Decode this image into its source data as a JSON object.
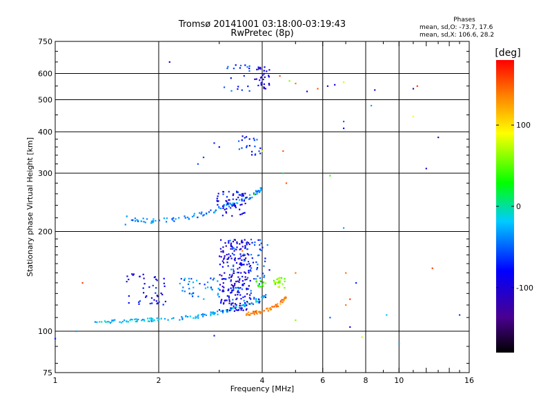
{
  "chart_data": {
    "type": "scatter",
    "title": "Tromsø 20141001 03:18:00-03:19:43",
    "subtitle": "RwPretec (8p)",
    "xlabel": "Frequency [MHz]",
    "ylabel": "Stationary phase Virtual Height [km]",
    "x_scale": "log",
    "y_scale": "log",
    "xlim": [
      1,
      16
    ],
    "ylim": [
      75,
      750
    ],
    "x_ticks": [
      "1",
      "2",
      "4",
      "6",
      "8",
      "10",
      "16"
    ],
    "x_tick_values": [
      1,
      2,
      4,
      6,
      8,
      10,
      16
    ],
    "y_ticks": [
      "75",
      "100",
      "200",
      "300",
      "400",
      "500",
      "600",
      "750"
    ],
    "y_tick_values": [
      75,
      100,
      200,
      300,
      400,
      500,
      600,
      750
    ],
    "x_gridlines": [
      2,
      4,
      6,
      8,
      10
    ],
    "y_gridlines": [
      100,
      200,
      300,
      400,
      500,
      600
    ],
    "grid": true,
    "phases_header": "Phases",
    "phases_o": "mean, sd,O: -73.7, 17.6",
    "phases_x": "mean, sd,X: 106.6, 28.2",
    "colorbar": {
      "label": "[deg]",
      "ticks": [
        "100",
        "0",
        "-100"
      ],
      "tick_values": [
        100,
        0,
        -100
      ],
      "range": [
        -180,
        180
      ]
    },
    "traces": [
      {
        "kind": "curve",
        "pts": [
          [
            1.3,
            107
          ],
          [
            1.5,
            107
          ],
          [
            1.8,
            108
          ],
          [
            2.2,
            109
          ],
          [
            2.6,
            111
          ],
          [
            3.0,
            114
          ],
          [
            3.4,
            118
          ],
          [
            3.8,
            123
          ],
          [
            4.1,
            128
          ]
        ],
        "phase": -25,
        "n": 150,
        "spread": 0.012
      },
      {
        "kind": "curve",
        "pts": [
          [
            3.6,
            113
          ],
          [
            3.9,
            114
          ],
          [
            4.2,
            117
          ],
          [
            4.5,
            121
          ],
          [
            4.7,
            127
          ]
        ],
        "phase": 140,
        "n": 70,
        "spread": 0.012
      },
      {
        "kind": "curve",
        "pts": [
          [
            1.6,
            220
          ],
          [
            1.9,
            215
          ],
          [
            2.3,
            218
          ],
          [
            2.8,
            228
          ],
          [
            3.3,
            243
          ],
          [
            3.7,
            255
          ],
          [
            4.0,
            270
          ]
        ],
        "phase": -40,
        "n": 110,
        "spread": 0.015
      },
      {
        "kind": "cloud",
        "f": [
          3.0,
          3.7
        ],
        "h": [
          115,
          190
        ],
        "phase": -95,
        "n": 200
      },
      {
        "kind": "cloud",
        "f": [
          3.2,
          4.2
        ],
        "h": [
          120,
          190
        ],
        "phase": -60,
        "n": 90
      },
      {
        "kind": "cloud",
        "f": [
          1.6,
          2.1
        ],
        "h": [
          120,
          150
        ],
        "phase": -85,
        "n": 45
      },
      {
        "kind": "cloud",
        "f": [
          2.3,
          3.0
        ],
        "h": [
          125,
          145
        ],
        "phase": -45,
        "n": 40
      },
      {
        "kind": "cloud",
        "f": [
          2.9,
          3.6
        ],
        "h": [
          220,
          265
        ],
        "phase": -85,
        "n": 60
      },
      {
        "kind": "cloud",
        "f": [
          3.4,
          4.0
        ],
        "h": [
          340,
          390
        ],
        "phase": -70,
        "n": 22
      },
      {
        "kind": "cloud",
        "f": [
          3.1,
          3.7
        ],
        "h": [
          520,
          640
        ],
        "phase": -60,
        "n": 20
      },
      {
        "kind": "cloud",
        "f": [
          3.8,
          4.2
        ],
        "h": [
          540,
          630
        ],
        "phase": -90,
        "n": 34
      },
      {
        "kind": "cloud",
        "f": [
          4.3,
          4.7
        ],
        "h": [
          135,
          145
        ],
        "phase": 55,
        "n": 20
      },
      {
        "kind": "cloud",
        "f": [
          3.8,
          4.1
        ],
        "h": [
          136,
          144
        ],
        "phase": 45,
        "n": 14
      }
    ],
    "points": [
      [
        2.15,
        650,
        -90
      ],
      [
        4.5,
        590,
        150
      ],
      [
        4.8,
        570,
        60
      ],
      [
        5.0,
        560,
        140
      ],
      [
        5.4,
        530,
        -100
      ],
      [
        5.8,
        540,
        150
      ],
      [
        6.2,
        550,
        -110
      ],
      [
        6.5,
        555,
        -90
      ],
      [
        6.9,
        565,
        80
      ],
      [
        8.5,
        535,
        -110
      ],
      [
        11.0,
        540,
        -120
      ],
      [
        11.3,
        550,
        160
      ],
      [
        6.9,
        430,
        -50
      ],
      [
        6.9,
        410,
        -80
      ],
      [
        8.3,
        480,
        -30
      ],
      [
        11.0,
        445,
        90
      ],
      [
        13.0,
        385,
        -120
      ],
      [
        12.0,
        310,
        -110
      ],
      [
        4.6,
        300,
        10
      ],
      [
        4.7,
        280,
        150
      ],
      [
        6.3,
        295,
        40
      ],
      [
        6.9,
        205,
        -30
      ],
      [
        4.0,
        350,
        80
      ],
      [
        4.6,
        350,
        150
      ],
      [
        3.8,
        260,
        40
      ],
      [
        2.7,
        335,
        -60
      ],
      [
        3.5,
        175,
        140
      ],
      [
        5.0,
        150,
        140
      ],
      [
        7.0,
        150,
        140
      ],
      [
        7.5,
        140,
        -70
      ],
      [
        7.2,
        125,
        160
      ],
      [
        7.0,
        120,
        140
      ],
      [
        7.2,
        103,
        -110
      ],
      [
        6.3,
        110,
        -50
      ],
      [
        5.0,
        108,
        60
      ],
      [
        4.5,
        145,
        60
      ],
      [
        12.5,
        155,
        160
      ],
      [
        15.0,
        112,
        -60
      ],
      [
        9.2,
        112,
        -20
      ],
      [
        10.0,
        92,
        -30
      ],
      [
        7.8,
        96,
        80
      ],
      [
        2.9,
        97,
        -70
      ],
      [
        1.15,
        100,
        -30
      ],
      [
        1.0,
        95,
        -70
      ],
      [
        1.2,
        140,
        160
      ],
      [
        1.6,
        210,
        -40
      ],
      [
        2.6,
        320,
        -55
      ],
      [
        3.0,
        360,
        -80
      ],
      [
        2.9,
        370,
        -70
      ]
    ]
  }
}
